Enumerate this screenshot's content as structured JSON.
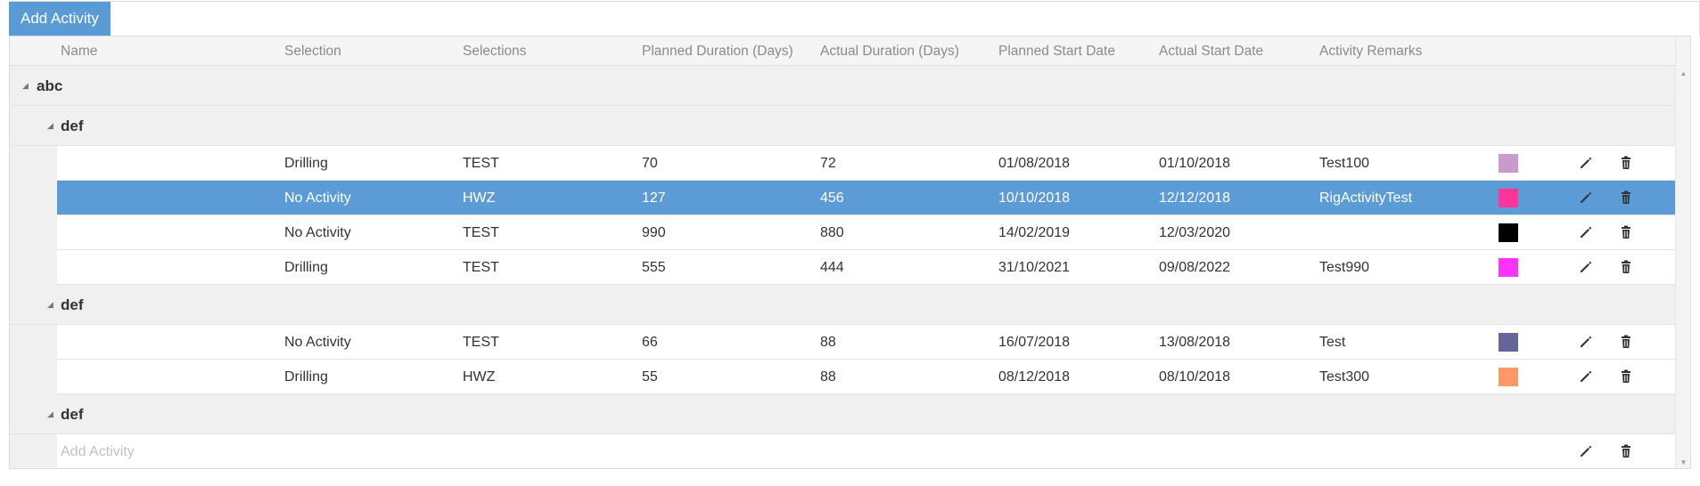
{
  "toolbar": {
    "add_label": "Add Activity"
  },
  "columns": [
    "Name",
    "Selection",
    "Selections",
    "Planned Duration (Days)",
    "Actual Duration (Days)",
    "Planned Start Date",
    "Actual Start Date",
    "Activity Remarks"
  ],
  "groups": {
    "abc": "abc",
    "def1": "def",
    "def2": "def",
    "def3": "def"
  },
  "rows": [
    {
      "name": "",
      "selection": "Drilling",
      "selections": "TEST",
      "planned_duration": "70",
      "actual_duration": "72",
      "planned_start": "01/08/2018",
      "actual_start": "01/10/2018",
      "remarks": "Test100",
      "color": "#cc99cc"
    },
    {
      "name": "",
      "selection": "No Activity",
      "selections": "HWZ",
      "planned_duration": "127",
      "actual_duration": "456",
      "planned_start": "10/10/2018",
      "actual_start": "12/12/2018",
      "remarks": "RigActivityTest",
      "color": "#ff3399"
    },
    {
      "name": "",
      "selection": "No Activity",
      "selections": "TEST",
      "planned_duration": "990",
      "actual_duration": "880",
      "planned_start": "14/02/2019",
      "actual_start": "12/03/2020",
      "remarks": "",
      "color": "#000000"
    },
    {
      "name": "",
      "selection": "Drilling",
      "selections": "TEST",
      "planned_duration": "555",
      "actual_duration": "444",
      "planned_start": "31/10/2021",
      "actual_start": "09/08/2022",
      "remarks": "Test990",
      "color": "#ff33ff"
    },
    {
      "name": "",
      "selection": "No Activity",
      "selections": "TEST",
      "planned_duration": "66",
      "actual_duration": "88",
      "planned_start": "16/07/2018",
      "actual_start": "13/08/2018",
      "remarks": "Test",
      "color": "#666699"
    },
    {
      "name": "",
      "selection": "Drilling",
      "selections": "HWZ",
      "planned_duration": "55",
      "actual_duration": "88",
      "planned_start": "08/12/2018",
      "actual_start": "08/10/2018",
      "remarks": "Test300",
      "color": "#ff9966"
    }
  ],
  "add_row": {
    "placeholder": "Add Activity"
  },
  "icons": {
    "edit": "pencil-icon",
    "delete": "trash-icon",
    "expanded": "triangle-expanded-icon"
  },
  "colors": {
    "accent": "#5b9bd6",
    "header_bg": "#f5f5f5",
    "group_bg": "#f0f0f0"
  }
}
